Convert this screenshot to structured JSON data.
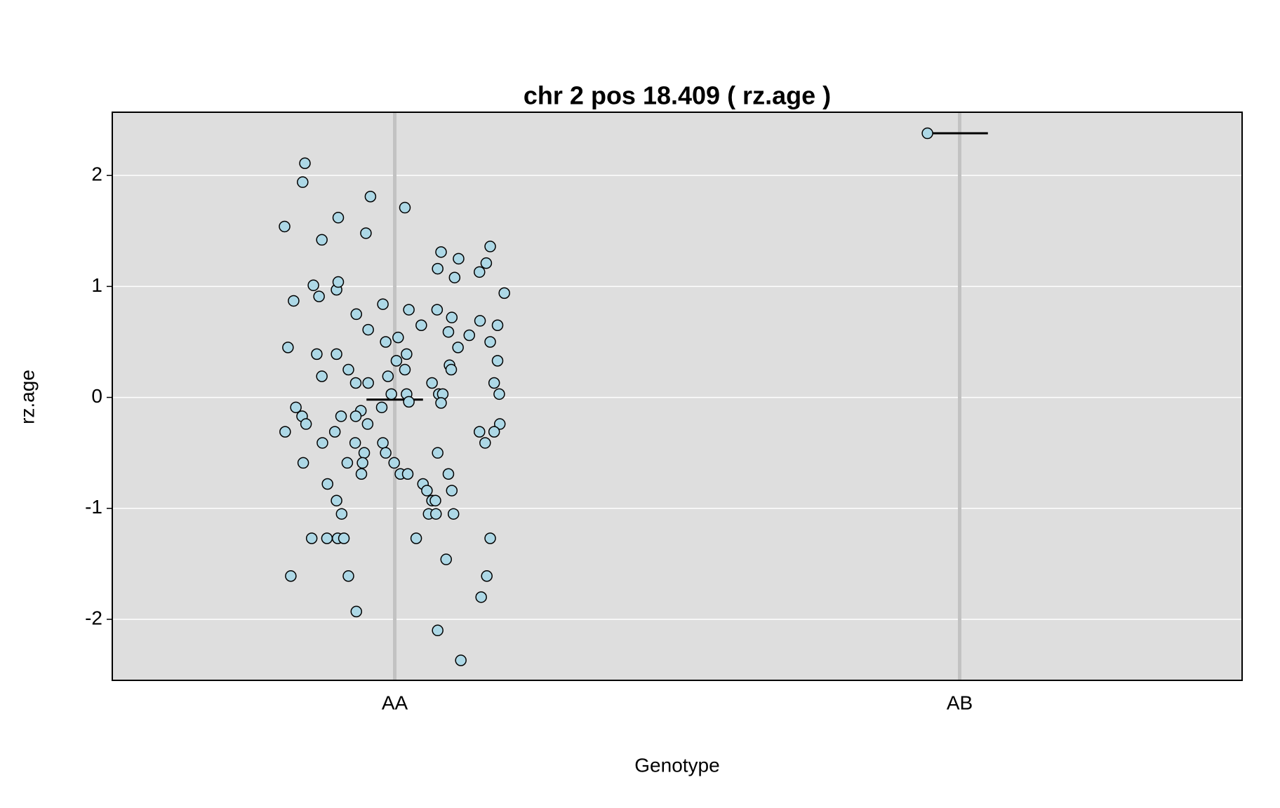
{
  "chart_data": {
    "type": "scatter",
    "title": "chr 2 pos 18.409 ( rz.age )",
    "x_label": "Genotype",
    "y_label": "rz.age",
    "xlim": [
      0.5,
      2.5
    ],
    "xticks": [
      {
        "value": 1,
        "label": "AA"
      },
      {
        "value": 2,
        "label": "AB"
      }
    ],
    "ylim": [
      -2.55,
      2.57
    ],
    "yticks": [
      -2,
      -1,
      0,
      1,
      2
    ],
    "grid": true,
    "background": "#dedede",
    "color": "#add8e6",
    "means": [
      -0.02,
      2.38
    ],
    "x": [
      0.805,
      0.841,
      0.837,
      0.9,
      0.871,
      0.957,
      1.018,
      0.949,
      0.821,
      0.856,
      0.866,
      0.897,
      0.9,
      0.811,
      0.862,
      0.871,
      0.897,
      0.918,
      0.931,
      0.953,
      0.932,
      0.953,
      0.979,
      0.984,
      0.988,
      1.006,
      1.003,
      1.021,
      1.018,
      0.994,
      1.021,
      1.025,
      0.977,
      0.94,
      0.931,
      0.905,
      0.952,
      0.825,
      0.836,
      0.843,
      0.806,
      0.894,
      0.872,
      0.93,
      0.946,
      0.943,
      0.916,
      0.838,
      0.941,
      0.979,
      0.984,
      0.999,
      1.01,
      1.023,
      0.881,
      0.897,
      0.906,
      0.853,
      0.88,
      0.899,
      0.91,
      0.816,
      0.918,
      0.932,
      1.025,
      1.047,
      1.075,
      1.076,
      1.082,
      1.113,
      1.106,
      1.169,
      1.162,
      1.15,
      1.194,
      1.101,
      1.095,
      1.132,
      1.112,
      1.151,
      1.182,
      1.169,
      1.097,
      1.1,
      1.182,
      1.066,
      1.078,
      1.085,
      1.082,
      1.176,
      1.185,
      1.186,
      1.15,
      1.176,
      1.16,
      1.076,
      1.095,
      1.05,
      1.057,
      1.066,
      1.072,
      1.101,
      1.06,
      1.073,
      1.104,
      1.038,
      1.169,
      1.091,
      1.163,
      1.153,
      1.076,
      1.117,
      1.943
    ],
    "values": [
      1.54,
      2.11,
      1.94,
      1.62,
      1.42,
      1.81,
      1.71,
      1.48,
      0.87,
      1.01,
      0.91,
      0.97,
      1.04,
      0.45,
      0.39,
      0.19,
      0.39,
      0.25,
      0.13,
      0.13,
      0.75,
      0.61,
      0.84,
      0.5,
      0.19,
      0.54,
      0.33,
      0.39,
      0.25,
      0.03,
      0.03,
      -0.04,
      -0.09,
      -0.12,
      -0.17,
      -0.17,
      -0.24,
      -0.09,
      -0.17,
      -0.24,
      -0.31,
      -0.31,
      -0.41,
      -0.41,
      -0.5,
      -0.59,
      -0.59,
      -0.59,
      -0.69,
      -0.41,
      -0.5,
      -0.59,
      -0.69,
      -0.69,
      -0.78,
      -0.93,
      -1.05,
      -1.27,
      -1.27,
      -1.27,
      -1.27,
      -1.61,
      -1.61,
      -1.93,
      0.79,
      0.65,
      0.79,
      1.16,
      1.31,
      1.25,
      1.08,
      1.36,
      1.21,
      1.13,
      0.94,
      0.72,
      0.59,
      0.56,
      0.45,
      0.69,
      0.65,
      0.5,
      0.29,
      0.25,
      0.33,
      0.13,
      0.03,
      0.03,
      -0.05,
      0.13,
      0.03,
      -0.24,
      -0.31,
      -0.31,
      -0.41,
      -0.5,
      -0.69,
      -0.78,
      -0.84,
      -0.93,
      -0.93,
      -0.84,
      -1.05,
      -1.05,
      -1.05,
      -1.27,
      -1.27,
      -1.46,
      -1.61,
      -1.8,
      -2.1,
      -2.37,
      2.38
    ]
  }
}
